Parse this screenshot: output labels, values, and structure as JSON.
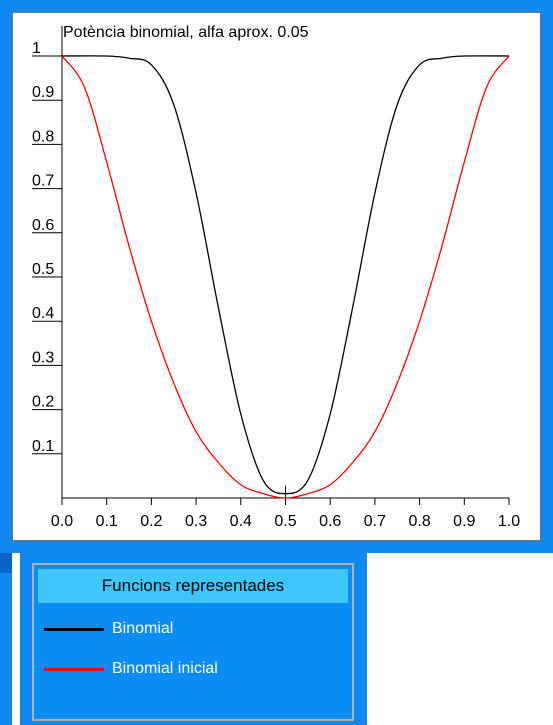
{
  "chart_data": {
    "type": "line",
    "title": "Potència binomial, alfa aprox. 0.05",
    "xlim": [
      0,
      1
    ],
    "ylim": [
      0,
      1
    ],
    "x_ticks": [
      "0.0",
      "0.1",
      "0.2",
      "0.3",
      "0.4",
      "0.5",
      "0.6",
      "0.7",
      "0.8",
      "0.9",
      "1.0"
    ],
    "y_ticks": [
      "0.1",
      "0.2",
      "0.3",
      "0.4",
      "0.5",
      "0.6",
      "0.7",
      "0.8",
      "0.9",
      "1"
    ],
    "grid": false,
    "series": [
      {
        "name": "Binomial",
        "color": "#000000",
        "x": [
          0,
          0.1,
          0.15,
          0.2,
          0.25,
          0.3,
          0.35,
          0.4,
          0.45,
          0.5,
          0.55,
          0.6,
          0.65,
          0.7,
          0.75,
          0.8,
          0.85,
          0.9,
          1.0
        ],
        "y": [
          1,
          1,
          0.995,
          0.98,
          0.89,
          0.69,
          0.43,
          0.19,
          0.04,
          0.01,
          0.04,
          0.19,
          0.43,
          0.69,
          0.89,
          0.98,
          0.995,
          1,
          1
        ]
      },
      {
        "name": "Binomial inicial",
        "color": "#ff0000",
        "x": [
          0,
          0.05,
          0.1,
          0.15,
          0.2,
          0.25,
          0.3,
          0.35,
          0.4,
          0.45,
          0.5,
          0.55,
          0.6,
          0.65,
          0.7,
          0.75,
          0.8,
          0.85,
          0.9,
          0.95,
          1.0
        ],
        "y": [
          1,
          0.93,
          0.76,
          0.57,
          0.4,
          0.26,
          0.15,
          0.08,
          0.03,
          0.01,
          0.0,
          0.01,
          0.03,
          0.08,
          0.15,
          0.26,
          0.4,
          0.57,
          0.76,
          0.93,
          1
        ]
      }
    ]
  },
  "legend": {
    "title": "Funcions  representades",
    "items": [
      {
        "label": "Binomial",
        "color": "#000000"
      },
      {
        "label": "Binomial inicial",
        "color": "#ff0000"
      }
    ]
  },
  "colors": {
    "frame": "#0f88f0",
    "legend_header": "#3fc6fa"
  }
}
